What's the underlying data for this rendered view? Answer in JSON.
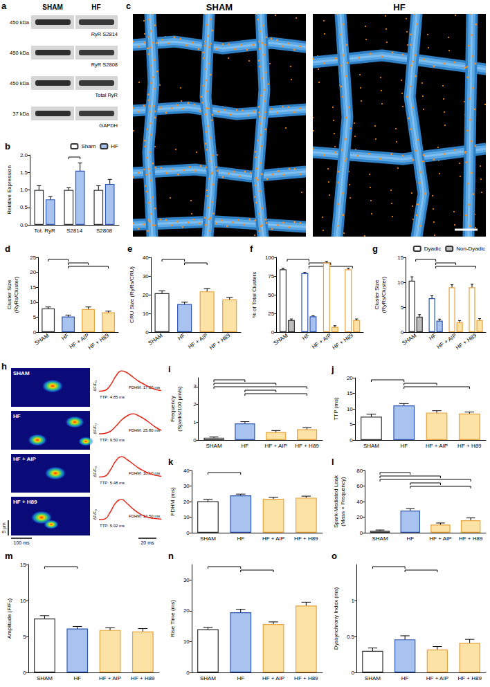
{
  "blot": {
    "title": "a",
    "columns": [
      "SHAM",
      "HF"
    ],
    "rows": [
      {
        "size": "450 kDa",
        "label": "RyR S2814"
      },
      {
        "size": "450 kDa",
        "label": "RyR S2808"
      },
      {
        "size": "450 kDa",
        "label": "Total RyR"
      },
      {
        "size": "37 kDa",
        "label": "GAPDH"
      }
    ]
  },
  "renderings": {
    "title": "c",
    "columns": [
      "SHAM",
      "HF"
    ]
  },
  "sparks": {
    "title": "h",
    "scale_y": "5 µm",
    "scale_x": "100 ms",
    "trace_ylabel": "ΔF/F₀",
    "trace_scale": "20 ms",
    "rows": [
      {
        "label": "SHAM",
        "ttp": "TTP: 4.85 ms",
        "fdhm": "FDHM: 17.00 ms",
        "trace": [
          0.02,
          0.05,
          0.3,
          0.75,
          1.0,
          0.9,
          0.7,
          0.5,
          0.35,
          0.2,
          0.1,
          0.05
        ]
      },
      {
        "label": "HF",
        "ttp": "TTP: 9.50 ms",
        "fdhm": "FDHM: 25.80 ms",
        "trace": [
          0.03,
          0.05,
          0.15,
          0.4,
          0.7,
          0.9,
          1.0,
          0.9,
          0.75,
          0.55,
          0.35,
          0.2
        ]
      },
      {
        "label": "HF + AIP",
        "ttp": "TTP: 5.48 ms",
        "fdhm": "FDHM: 18.10 ms",
        "trace": [
          0.02,
          0.05,
          0.35,
          0.8,
          1.0,
          0.85,
          0.65,
          0.45,
          0.3,
          0.18,
          0.1,
          0.05
        ]
      },
      {
        "label": "HF + H89",
        "ttp": "TTP: 5.02 ms",
        "fdhm": "FDHM: 13.50 ms",
        "trace": [
          0.03,
          0.06,
          0.4,
          0.85,
          1.0,
          0.8,
          0.55,
          0.35,
          0.2,
          0.12,
          0.08,
          0.05
        ]
      }
    ]
  },
  "chart_data": [
    {
      "type": "bar",
      "title": "b",
      "ylabel": "Relative Expression",
      "categories": [
        "Tot. RyR",
        "S2814",
        "S2808"
      ],
      "ylim": [
        0,
        2
      ],
      "yticks": [
        {
          "value": 0,
          "label": "0.0"
        },
        {
          "value": 0.5,
          "label": "0.5"
        },
        {
          "value": 1,
          "label": "1.0"
        },
        {
          "value": 1.5,
          "label": "1.5"
        },
        {
          "value": 2,
          "label": "2.0"
        }
      ],
      "legend": "upper right",
      "series": [
        {
          "name": "Sham",
          "color": "#ffffff",
          "values": [
            1.0,
            1.0,
            1.0
          ],
          "error": [
            0.12,
            0.06,
            0.12
          ]
        },
        {
          "name": "HF",
          "color": "#a8c3ef",
          "values": [
            0.73,
            1.55,
            1.17
          ],
          "error": [
            0.08,
            0.22,
            0.13
          ]
        }
      ],
      "brackets": [
        [
          1,
          1
        ]
      ]
    },
    {
      "type": "bar",
      "title": "d",
      "ylabel": "Cluster Size (RyRs/Cluster)",
      "categories": [
        "SHAM",
        "HF",
        "HF + AIP",
        "HF + H89"
      ],
      "ylim": [
        0,
        25
      ],
      "yticks": [
        0,
        5,
        10,
        15,
        20,
        25
      ],
      "series": [
        {
          "colors": [
            "#ffffff",
            "#a8c3ef",
            "#fde2a6",
            "#fde2a6"
          ],
          "values": [
            7.9,
            5.2,
            7.7,
            6.6
          ],
          "error": [
            0.5,
            0.5,
            0.7,
            0.4
          ]
        }
      ],
      "brackets": [
        [
          0,
          1
        ],
        [
          1,
          2
        ],
        [
          1,
          3
        ]
      ]
    },
    {
      "type": "bar",
      "title": "e",
      "ylabel": "CRU Size (RyRs/CRU)",
      "categories": [
        "SHAM",
        "HF",
        "HF + AIP",
        "HF + H89"
      ],
      "ylim": [
        0,
        40
      ],
      "yticks": [
        0,
        10,
        20,
        30,
        40
      ],
      "series": [
        {
          "colors": [
            "#ffffff",
            "#a8c3ef",
            "#fde2a6",
            "#fde2a6"
          ],
          "values": [
            20.8,
            15.0,
            21.8,
            17.5
          ],
          "error": [
            1.3,
            1.0,
            1.5,
            1.0
          ]
        }
      ],
      "brackets": [
        [
          0,
          1
        ],
        [
          1,
          2
        ]
      ]
    },
    {
      "type": "bar",
      "title": "f",
      "ylabel": "% of Total Clusters",
      "categories": [
        "SHAM",
        "HF",
        "HF + AIP",
        "HF + H89"
      ],
      "ylim": [
        0,
        100
      ],
      "yticks": [
        0,
        25,
        50,
        75,
        100
      ],
      "series": [
        {
          "colors": [
            "#ffffff",
            "#ffffff",
            "#ffffff",
            "#ffffff"
          ],
          "values": [
            84,
            79,
            93,
            84
          ],
          "error": [
            1.5,
            1.0,
            1.5,
            1.5
          ]
        },
        {
          "colors": [
            "#bdbdbd",
            "#a8c3ef",
            "#fde2a6",
            "#fde2a6"
          ],
          "values": [
            16,
            21,
            7,
            16
          ],
          "error": [
            1.5,
            1.0,
            1.5,
            1.5
          ]
        }
      ],
      "brackets": [
        [
          0,
          1
        ],
        [
          1,
          2
        ],
        [
          1,
          3
        ]
      ]
    },
    {
      "type": "bar",
      "title": "g",
      "ylabel": "Cluster Size (RyRs/Cluster)",
      "categories": [
        "SHAM",
        "HF",
        "HF + AIP",
        "HF + H89"
      ],
      "ylim": [
        0,
        15
      ],
      "yticks": [
        0,
        5,
        10,
        15
      ],
      "legend": "upper right",
      "series": [
        {
          "name": "Dyadic",
          "colors": [
            "#ffffff",
            "#ffffff",
            "#ffffff",
            "#ffffff"
          ],
          "values": [
            10.3,
            6.8,
            9.0,
            9.0
          ],
          "error": [
            0.8,
            0.5,
            0.5,
            0.6
          ]
        },
        {
          "name": "Non-Dyadic",
          "colors": [
            "#bdbdbd",
            "#a8c3ef",
            "#fde2a6",
            "#fde2a6"
          ],
          "values": [
            3.1,
            2.3,
            2.0,
            2.4
          ],
          "error": [
            0.4,
            0.3,
            0.3,
            0.3
          ]
        }
      ],
      "brackets": [
        [
          0,
          1
        ],
        [
          1,
          2
        ],
        [
          1,
          3
        ]
      ]
    },
    {
      "type": "bar",
      "title": "i",
      "ylabel": "Frequency (Sparks/100 µm/s)",
      "categories": [
        "SHAM",
        "HF",
        "HF + AIP",
        "HF + H89"
      ],
      "ylim": [
        0,
        3.5
      ],
      "yticks": [
        0,
        1,
        2,
        3
      ],
      "series": [
        {
          "colors": [
            "#ffffff",
            "#a8c3ef",
            "#fde2a6",
            "#fde2a6"
          ],
          "values": [
            0.13,
            0.93,
            0.45,
            0.6
          ],
          "error": [
            0.04,
            0.1,
            0.08,
            0.1
          ]
        }
      ],
      "brackets": [
        [
          0,
          1
        ],
        [
          0,
          2
        ],
        [
          0,
          3
        ],
        [
          1,
          2
        ],
        [
          1,
          3
        ]
      ]
    },
    {
      "type": "bar",
      "title": "j",
      "ylabel": "TTP (ms)",
      "categories": [
        "SHAM",
        "HF",
        "HF + AIP",
        "HF + H89"
      ],
      "ylim": [
        0,
        20
      ],
      "yticks": [
        0,
        5,
        10,
        15,
        20
      ],
      "series": [
        {
          "colors": [
            "#ffffff",
            "#a8c3ef",
            "#fde2a6",
            "#fde2a6"
          ],
          "values": [
            7.5,
            11.1,
            8.8,
            8.5
          ],
          "error": [
            0.8,
            0.6,
            0.6,
            0.5
          ]
        }
      ],
      "brackets": [
        [
          0,
          1
        ],
        [
          1,
          2
        ],
        [
          1,
          3
        ]
      ]
    },
    {
      "type": "bar",
      "title": "k",
      "ylabel": "FDHM (ms)",
      "categories": [
        "SHAM",
        "HF",
        "HF + AIP",
        "HF + H89"
      ],
      "ylim": [
        0,
        40
      ],
      "yticks": [
        0,
        10,
        20,
        30,
        40
      ],
      "series": [
        {
          "colors": [
            "#ffffff",
            "#a8c3ef",
            "#fde2a6",
            "#fde2a6"
          ],
          "values": [
            20.2,
            24.0,
            21.8,
            22.5
          ],
          "error": [
            1.2,
            0.8,
            0.9,
            1.0
          ]
        }
      ],
      "brackets": [
        [
          0,
          1
        ]
      ]
    },
    {
      "type": "bar",
      "title": "l",
      "ylabel": "Spark-Mediated Leak (Mass × Frequency)",
      "categories": [
        "SHAM",
        "HF",
        "HF + AIP",
        "HF + H89"
      ],
      "ylim": [
        0,
        80
      ],
      "yticks": [
        0,
        20,
        40,
        60,
        80
      ],
      "series": [
        {
          "colors": [
            "#ffffff",
            "#a8c3ef",
            "#fde2a6",
            "#fde2a6"
          ],
          "values": [
            2.5,
            28.5,
            10.5,
            16.0
          ],
          "error": [
            1.0,
            2.5,
            2.0,
            3.0
          ]
        }
      ],
      "brackets": [
        [
          0,
          1
        ],
        [
          0,
          2
        ],
        [
          0,
          3
        ],
        [
          1,
          2
        ],
        [
          1,
          3
        ]
      ]
    },
    {
      "type": "bar",
      "title": "m",
      "ylabel": "Amplitude (F/F₀)",
      "categories": [
        "SHAM",
        "HF",
        "HF + AIP",
        "HF + H89"
      ],
      "ylim": [
        0,
        15
      ],
      "yticks": [
        0,
        5,
        10,
        15
      ],
      "series": [
        {
          "colors": [
            "#ffffff",
            "#a8c3ef",
            "#fde2a6",
            "#fde2a6"
          ],
          "values": [
            7.5,
            6.1,
            5.9,
            5.7
          ],
          "error": [
            0.4,
            0.3,
            0.3,
            0.4
          ]
        }
      ],
      "brackets": [
        [
          0,
          1
        ]
      ]
    },
    {
      "type": "bar",
      "title": "n",
      "ylabel": "Rise Time (ms)",
      "categories": [
        "SHAM",
        "HF",
        "HF + AIP",
        "HF + H89"
      ],
      "ylim": [
        0,
        35
      ],
      "yticks": [
        0,
        10,
        20,
        30
      ],
      "series": [
        {
          "colors": [
            "#ffffff",
            "#a8c3ef",
            "#fde2a6",
            "#fde2a6"
          ],
          "values": [
            14.0,
            19.5,
            15.7,
            21.7
          ],
          "error": [
            0.6,
            1.0,
            0.7,
            1.1
          ]
        }
      ],
      "brackets": [
        [
          0,
          1
        ],
        [
          1,
          2
        ]
      ]
    },
    {
      "type": "bar",
      "title": "o",
      "ylabel": "Dyssynchrony Index (ms)",
      "categories": [
        "SHAM",
        "HF",
        "HF + AIP",
        "HF + H89"
      ],
      "ylim": [
        0,
        1.5
      ],
      "yticks": [
        0,
        0.5,
        1
      ],
      "series": [
        {
          "colors": [
            "#ffffff",
            "#a8c3ef",
            "#fde2a6",
            "#fde2a6"
          ],
          "values": [
            0.3,
            0.46,
            0.32,
            0.41
          ],
          "error": [
            0.04,
            0.05,
            0.04,
            0.05
          ]
        }
      ],
      "brackets": [
        [
          0,
          1
        ],
        [
          1,
          2
        ]
      ]
    }
  ]
}
